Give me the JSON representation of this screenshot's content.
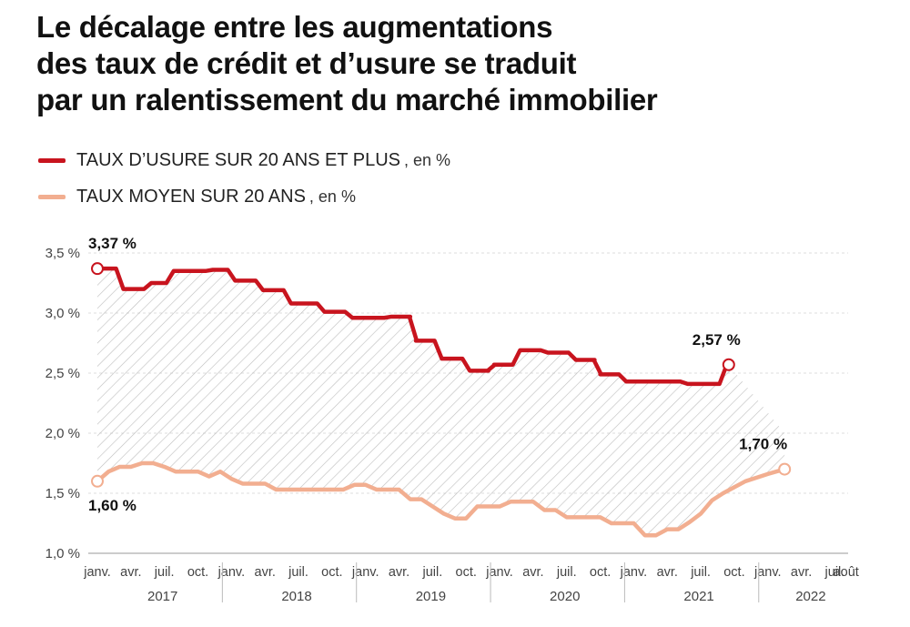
{
  "title_lines": [
    "Le décalage entre les augmentations",
    "des taux de crédit et d’usure se traduit",
    "par un ralentissement du marché immobilier"
  ],
  "legend": [
    {
      "label": "TAUX D’USURE SUR 20 ANS ET PLUS",
      "unit": ", en %",
      "color": "#c8141e"
    },
    {
      "label": "TAUX MOYEN SUR 20 ANS",
      "unit": ", en %",
      "color": "#f2ae90"
    }
  ],
  "chart_data": {
    "type": "line",
    "title": "",
    "xlabel": "",
    "ylabel": "",
    "ylim": [
      1.0,
      3.5
    ],
    "yticks": [
      {
        "value": 1.0,
        "label": "1,0 %"
      },
      {
        "value": 1.5,
        "label": "1,5 %"
      },
      {
        "value": 2.0,
        "label": "2,0 %"
      },
      {
        "value": 2.5,
        "label": "2,5 %"
      },
      {
        "value": 3.0,
        "label": "3,0 %"
      },
      {
        "value": 3.5,
        "label": "3,5 %"
      }
    ],
    "x_start_month": "2017-01",
    "xticks": [
      {
        "month": 0,
        "label": "janv."
      },
      {
        "month": 3,
        "label": "avr."
      },
      {
        "month": 6,
        "label": "juil."
      },
      {
        "month": 9,
        "label": "oct."
      },
      {
        "month": 12,
        "label": "janv."
      },
      {
        "month": 15,
        "label": "avr."
      },
      {
        "month": 18,
        "label": "juil."
      },
      {
        "month": 21,
        "label": "oct."
      },
      {
        "month": 24,
        "label": "janv."
      },
      {
        "month": 27,
        "label": "avr."
      },
      {
        "month": 30,
        "label": "juil."
      },
      {
        "month": 33,
        "label": "oct."
      },
      {
        "month": 36,
        "label": "janv."
      },
      {
        "month": 39,
        "label": "avr."
      },
      {
        "month": 42,
        "label": "juil."
      },
      {
        "month": 45,
        "label": "oct."
      },
      {
        "month": 48,
        "label": "janv."
      },
      {
        "month": 51,
        "label": "avr."
      },
      {
        "month": 54,
        "label": "juil."
      },
      {
        "month": 57,
        "label": "oct."
      },
      {
        "month": 60,
        "label": "janv."
      },
      {
        "month": 63,
        "label": "avr."
      },
      {
        "month": 66,
        "label": "juil."
      },
      {
        "month": 67,
        "label": "août"
      }
    ],
    "year_labels": [
      {
        "label": "2017",
        "from": 0,
        "to": 12
      },
      {
        "label": "2018",
        "from": 12,
        "to": 24
      },
      {
        "label": "2019",
        "from": 24,
        "to": 36
      },
      {
        "label": "2020",
        "from": 36,
        "to": 48
      },
      {
        "label": "2021",
        "from": 48,
        "to": 60
      },
      {
        "label": "2022",
        "from": 60,
        "to": 68
      }
    ],
    "x_max_month": 68,
    "series": [
      {
        "name": "TAUX D’USURE SUR 20 ANS ET PLUS",
        "color": "#c8141e",
        "step": true,
        "values": [
          3.37,
          3.37,
          3.2,
          3.2,
          3.25,
          3.25,
          3.35,
          3.35,
          3.35,
          3.36,
          3.36,
          3.27,
          3.27,
          3.19,
          3.19,
          3.08,
          3.08,
          3.01,
          3.01,
          2.96,
          2.96,
          2.96,
          2.97,
          2.97,
          2.77,
          2.77,
          2.62,
          2.62,
          2.52,
          2.52,
          2.57,
          2.57,
          2.69,
          2.69,
          2.67,
          2.67,
          2.61,
          2.61,
          2.49,
          2.49,
          2.43,
          2.43,
          2.43,
          2.43,
          2.43,
          2.41,
          2.41,
          2.41,
          2.57
        ],
        "x_months": [
          0,
          1.5,
          2.5,
          4,
          5,
          6,
          7,
          8.5,
          9.5,
          10.5,
          11.5,
          12.5,
          14,
          15,
          16.5,
          17.5,
          19.5,
          20.5,
          22,
          23,
          24.5,
          25.5,
          26.5,
          28,
          28.5,
          30,
          31,
          32.5,
          33.5,
          35,
          35.5,
          37,
          38,
          39.5,
          40.5,
          42,
          43,
          44.5,
          45,
          46.5,
          47.5,
          49,
          50,
          51,
          52,
          53,
          54,
          55.5,
          56.5
        ]
      },
      {
        "name": "TAUX MOYEN SUR 20 ANS",
        "color": "#f2ae90",
        "step": false,
        "values": [
          1.6,
          1.68,
          1.72,
          1.72,
          1.75,
          1.75,
          1.72,
          1.68,
          1.68,
          1.68,
          1.64,
          1.68,
          1.62,
          1.58,
          1.58,
          1.58,
          1.53,
          1.53,
          1.53,
          1.53,
          1.53,
          1.53,
          1.53,
          1.57,
          1.57,
          1.53,
          1.53,
          1.53,
          1.45,
          1.45,
          1.39,
          1.33,
          1.29,
          1.29,
          1.39,
          1.39,
          1.39,
          1.43,
          1.43,
          1.43,
          1.36,
          1.36,
          1.3,
          1.3,
          1.3,
          1.3,
          1.25,
          1.25,
          1.25,
          1.15,
          1.15,
          1.2,
          1.2,
          1.26,
          1.33,
          1.44,
          1.5,
          1.55,
          1.6,
          1.63,
          1.66,
          1.7
        ],
        "x_months": [
          0,
          1,
          2,
          3,
          4,
          5,
          6,
          7,
          8,
          9,
          10,
          11,
          12,
          13,
          14,
          15,
          16,
          17,
          18,
          19,
          20,
          21,
          22,
          23,
          24,
          25,
          26,
          27,
          28,
          29,
          30,
          31,
          32,
          33,
          34,
          35,
          36,
          37,
          38,
          39,
          40,
          41,
          42,
          43,
          44,
          45,
          46,
          47,
          48,
          49,
          50,
          51,
          52,
          53,
          54,
          55,
          56,
          57,
          58,
          59,
          60,
          61.5
        ]
      }
    ],
    "annotations": [
      {
        "text": "3,37 %",
        "series": 0,
        "at": "start"
      },
      {
        "text": "2,57 %",
        "series": 0,
        "at": "end"
      },
      {
        "text": "1,60 %",
        "series": 1,
        "at": "start"
      },
      {
        "text": "1,70 %",
        "series": 1,
        "at": "end"
      }
    ]
  }
}
